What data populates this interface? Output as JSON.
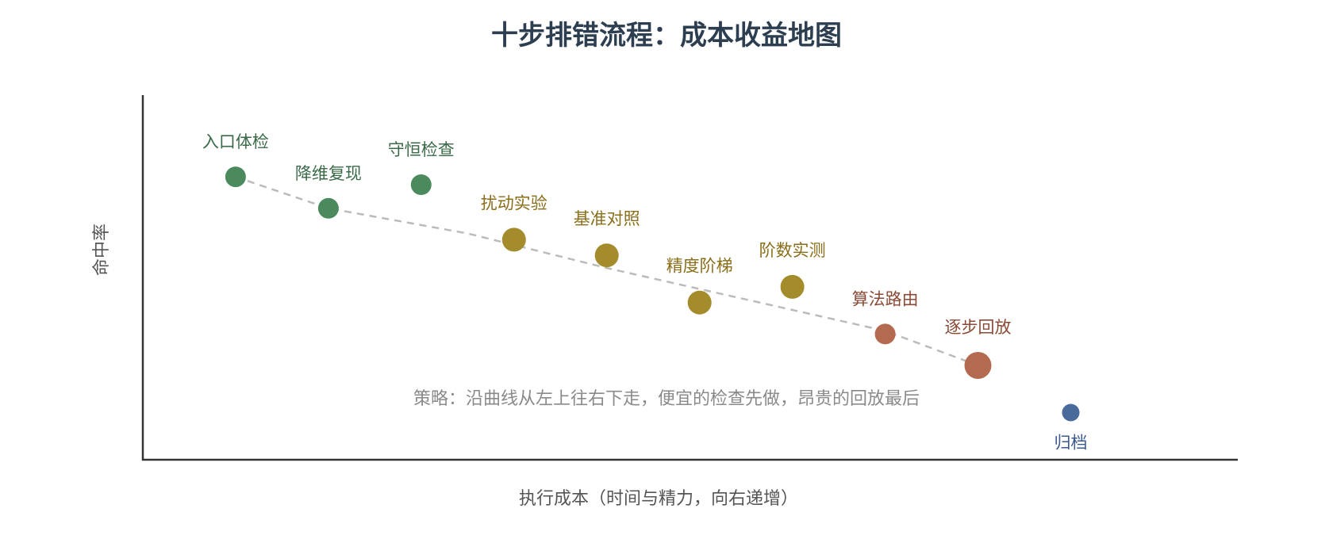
{
  "chart_data": {
    "type": "scatter",
    "title": "十步排错流程：成本收益地图",
    "xlabel": "执行成本（时间与精力，向右递增）",
    "ylabel": "命中率",
    "grid": false,
    "xlim": [
      0,
      11.8
    ],
    "ylim": [
      0,
      11.6
    ],
    "points": [
      {
        "name": "入口体检",
        "x": 1.0,
        "y": 9.0,
        "color": "#4a8a5c",
        "label_pos": "above"
      },
      {
        "name": "降维复现",
        "x": 2.0,
        "y": 8.0,
        "color": "#4a8a5c",
        "label_pos": "above"
      },
      {
        "name": "守恒检查",
        "x": 3.0,
        "y": 8.75,
        "color": "#4a8a5c",
        "label_pos": "above"
      },
      {
        "name": "扰动实验",
        "x": 4.0,
        "y": 7.0,
        "color": "#a48b2c",
        "label_pos": "above"
      },
      {
        "name": "基准对照",
        "x": 5.0,
        "y": 6.5,
        "color": "#a48b2c",
        "label_pos": "above"
      },
      {
        "name": "精度阶梯",
        "x": 6.0,
        "y": 5.0,
        "color": "#a48b2c",
        "label_pos": "above"
      },
      {
        "name": "阶数实测",
        "x": 7.0,
        "y": 5.5,
        "color": "#a48b2c",
        "label_pos": "above"
      },
      {
        "name": "算法路由",
        "x": 8.0,
        "y": 4.0,
        "color": "#b46a50",
        "label_pos": "above"
      },
      {
        "name": "逐步回放",
        "x": 9.0,
        "y": 3.0,
        "color": "#b46a50",
        "label_pos": "above"
      },
      {
        "name": "归档",
        "x": 10.0,
        "y": 1.5,
        "color": "#4a6a9c",
        "label_pos": "below"
      }
    ],
    "trend": {
      "style": "dashed",
      "color": "#bbbbbb",
      "points": [
        [
          1.0,
          9.0
        ],
        [
          2.0,
          8.0
        ],
        [
          3.5,
          7.2
        ],
        [
          5.0,
          6.1
        ],
        [
          6.5,
          5.1
        ],
        [
          8.0,
          4.1
        ],
        [
          9.0,
          3.0
        ]
      ]
    },
    "annotation": "策略：沿曲线从左上往右下走，便宜的检查先做，昂贵的回放最后",
    "label_colors": {
      "#4a8a5c": "#3a6a48",
      "#a48b2c": "#8a6e1a",
      "#b46a50": "#8a4a35",
      "#4a6a9c": "#3a5a8c"
    }
  }
}
